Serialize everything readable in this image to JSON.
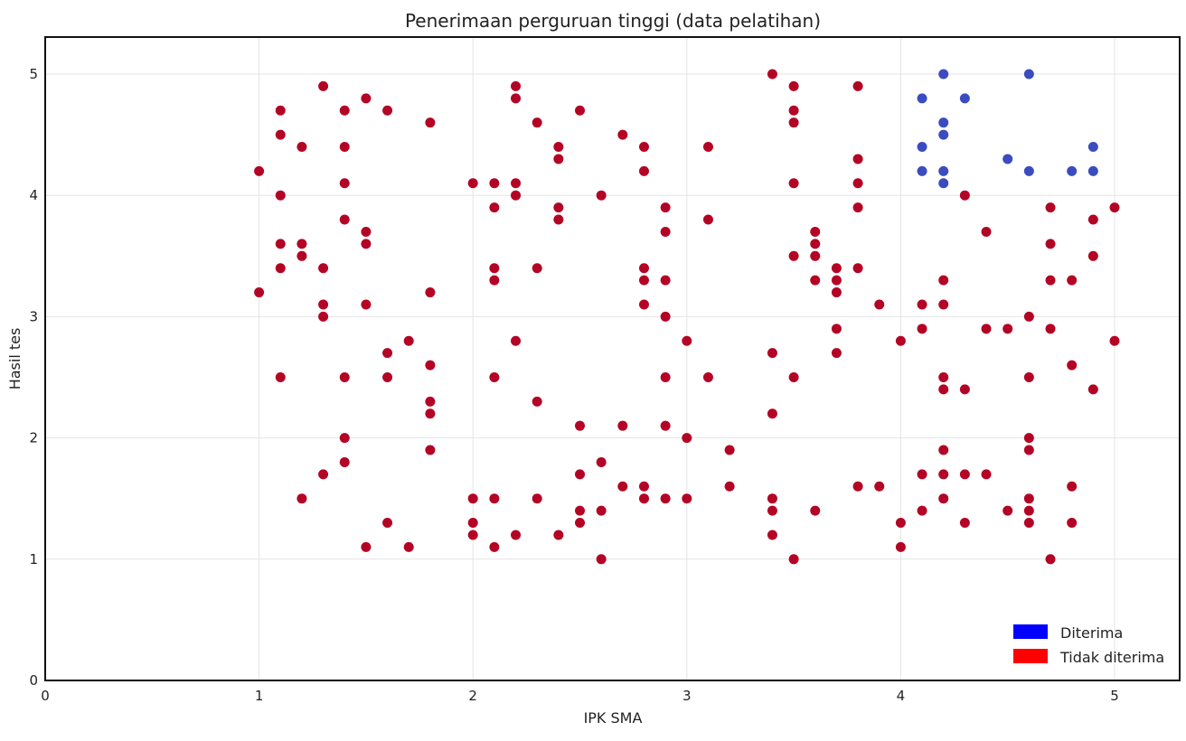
{
  "chart_data": {
    "type": "scatter",
    "title": "Penerimaan perguruan tinggi (data pelatihan)",
    "xlabel": "IPK SMA",
    "ylabel": "Hasil tes",
    "xlim": [
      0,
      5.3
    ],
    "ylim": [
      0,
      5.3
    ],
    "xticks": [
      "0",
      "1",
      "2",
      "3",
      "4",
      "5"
    ],
    "yticks": [
      "0",
      "1",
      "2",
      "3",
      "4",
      "5"
    ],
    "grid": true,
    "legend_position": "bottom-right",
    "legend": [
      {
        "label": "Diterima",
        "color": "#0000ff"
      },
      {
        "label": "Tidak diterima",
        "color": "#ff0000"
      }
    ],
    "series": [
      {
        "name": "Diterima",
        "color": "#3b4cc0",
        "points": [
          [
            4.1,
            4.8
          ],
          [
            4.1,
            4.4
          ],
          [
            4.1,
            4.2
          ],
          [
            4.2,
            5.0
          ],
          [
            4.2,
            4.6
          ],
          [
            4.2,
            4.5
          ],
          [
            4.2,
            4.2
          ],
          [
            4.2,
            4.1
          ],
          [
            4.3,
            4.8
          ],
          [
            4.5,
            4.3
          ],
          [
            4.6,
            5.0
          ],
          [
            4.6,
            4.2
          ],
          [
            4.8,
            4.2
          ],
          [
            4.9,
            4.4
          ],
          [
            4.9,
            4.2
          ]
        ]
      },
      {
        "name": "Tidak diterima",
        "color": "#b40426",
        "points": [
          [
            1.0,
            4.2
          ],
          [
            1.0,
            3.2
          ],
          [
            1.1,
            4.7
          ],
          [
            1.1,
            4.5
          ],
          [
            1.1,
            4.0
          ],
          [
            1.1,
            3.6
          ],
          [
            1.1,
            3.4
          ],
          [
            1.1,
            2.5
          ],
          [
            1.2,
            4.4
          ],
          [
            1.2,
            3.6
          ],
          [
            1.2,
            3.5
          ],
          [
            1.2,
            1.5
          ],
          [
            1.3,
            4.9
          ],
          [
            1.3,
            3.4
          ],
          [
            1.3,
            3.1
          ],
          [
            1.3,
            3.0
          ],
          [
            1.3,
            1.7
          ],
          [
            1.4,
            4.7
          ],
          [
            1.4,
            4.4
          ],
          [
            1.4,
            4.1
          ],
          [
            1.4,
            3.8
          ],
          [
            1.4,
            2.5
          ],
          [
            1.4,
            2.0
          ],
          [
            1.4,
            1.8
          ],
          [
            1.5,
            4.8
          ],
          [
            1.5,
            3.7
          ],
          [
            1.5,
            3.6
          ],
          [
            1.5,
            3.1
          ],
          [
            1.5,
            1.1
          ],
          [
            1.6,
            4.7
          ],
          [
            1.6,
            2.7
          ],
          [
            1.6,
            2.5
          ],
          [
            1.6,
            1.3
          ],
          [
            1.7,
            2.8
          ],
          [
            1.7,
            1.1
          ],
          [
            1.8,
            4.6
          ],
          [
            1.8,
            3.2
          ],
          [
            1.8,
            2.6
          ],
          [
            1.8,
            2.3
          ],
          [
            1.8,
            2.2
          ],
          [
            1.8,
            1.9
          ],
          [
            2.0,
            4.1
          ],
          [
            2.0,
            1.5
          ],
          [
            2.0,
            1.3
          ],
          [
            2.0,
            1.2
          ],
          [
            2.1,
            4.1
          ],
          [
            2.1,
            3.9
          ],
          [
            2.1,
            3.4
          ],
          [
            2.1,
            3.3
          ],
          [
            2.1,
            2.5
          ],
          [
            2.1,
            1.5
          ],
          [
            2.1,
            1.1
          ],
          [
            2.2,
            4.9
          ],
          [
            2.2,
            4.8
          ],
          [
            2.2,
            4.1
          ],
          [
            2.2,
            4.0
          ],
          [
            2.2,
            2.8
          ],
          [
            2.2,
            1.2
          ],
          [
            2.3,
            4.6
          ],
          [
            2.3,
            3.4
          ],
          [
            2.3,
            2.3
          ],
          [
            2.3,
            1.5
          ],
          [
            2.4,
            4.4
          ],
          [
            2.4,
            4.3
          ],
          [
            2.4,
            3.9
          ],
          [
            2.4,
            3.8
          ],
          [
            2.4,
            1.2
          ],
          [
            2.5,
            4.7
          ],
          [
            2.5,
            2.1
          ],
          [
            2.5,
            1.7
          ],
          [
            2.5,
            1.4
          ],
          [
            2.5,
            1.3
          ],
          [
            2.6,
            4.0
          ],
          [
            2.6,
            1.8
          ],
          [
            2.6,
            1.4
          ],
          [
            2.6,
            1.0
          ],
          [
            2.7,
            4.5
          ],
          [
            2.7,
            2.1
          ],
          [
            2.7,
            1.6
          ],
          [
            2.8,
            4.4
          ],
          [
            2.8,
            4.2
          ],
          [
            2.8,
            3.4
          ],
          [
            2.8,
            3.3
          ],
          [
            2.8,
            3.1
          ],
          [
            2.8,
            1.6
          ],
          [
            2.8,
            1.5
          ],
          [
            2.9,
            3.9
          ],
          [
            2.9,
            3.7
          ],
          [
            2.9,
            3.3
          ],
          [
            2.9,
            3.0
          ],
          [
            2.9,
            2.5
          ],
          [
            2.9,
            2.1
          ],
          [
            2.9,
            1.5
          ],
          [
            3.0,
            2.8
          ],
          [
            3.0,
            2.0
          ],
          [
            3.0,
            1.5
          ],
          [
            3.1,
            4.4
          ],
          [
            3.1,
            3.8
          ],
          [
            3.1,
            2.5
          ],
          [
            3.2,
            1.9
          ],
          [
            3.2,
            1.6
          ],
          [
            3.4,
            5.0
          ],
          [
            3.4,
            2.7
          ],
          [
            3.4,
            2.2
          ],
          [
            3.4,
            1.5
          ],
          [
            3.4,
            1.4
          ],
          [
            3.4,
            1.2
          ],
          [
            3.5,
            4.9
          ],
          [
            3.5,
            4.7
          ],
          [
            3.5,
            4.6
          ],
          [
            3.5,
            4.1
          ],
          [
            3.5,
            3.5
          ],
          [
            3.5,
            2.5
          ],
          [
            3.5,
            1.0
          ],
          [
            3.6,
            3.7
          ],
          [
            3.6,
            3.6
          ],
          [
            3.6,
            3.5
          ],
          [
            3.6,
            3.3
          ],
          [
            3.6,
            1.4
          ],
          [
            3.7,
            3.4
          ],
          [
            3.7,
            3.3
          ],
          [
            3.7,
            3.2
          ],
          [
            3.7,
            2.9
          ],
          [
            3.7,
            2.7
          ],
          [
            3.8,
            4.9
          ],
          [
            3.8,
            4.3
          ],
          [
            3.8,
            4.1
          ],
          [
            3.8,
            3.9
          ],
          [
            3.8,
            3.4
          ],
          [
            3.8,
            1.6
          ],
          [
            3.9,
            3.1
          ],
          [
            3.9,
            1.6
          ],
          [
            4.0,
            2.8
          ],
          [
            4.0,
            1.3
          ],
          [
            4.0,
            1.1
          ],
          [
            4.1,
            3.1
          ],
          [
            4.1,
            2.9
          ],
          [
            4.1,
            1.7
          ],
          [
            4.1,
            1.4
          ],
          [
            4.2,
            3.3
          ],
          [
            4.2,
            3.1
          ],
          [
            4.2,
            2.5
          ],
          [
            4.2,
            2.4
          ],
          [
            4.2,
            1.9
          ],
          [
            4.2,
            1.7
          ],
          [
            4.2,
            1.5
          ],
          [
            4.3,
            4.0
          ],
          [
            4.3,
            2.4
          ],
          [
            4.3,
            1.7
          ],
          [
            4.3,
            1.3
          ],
          [
            4.4,
            3.7
          ],
          [
            4.4,
            2.9
          ],
          [
            4.4,
            1.7
          ],
          [
            4.5,
            2.9
          ],
          [
            4.5,
            1.4
          ],
          [
            4.6,
            3.0
          ],
          [
            4.6,
            2.5
          ],
          [
            4.6,
            2.0
          ],
          [
            4.6,
            1.9
          ],
          [
            4.6,
            1.5
          ],
          [
            4.6,
            1.4
          ],
          [
            4.6,
            1.3
          ],
          [
            4.7,
            3.9
          ],
          [
            4.7,
            3.6
          ],
          [
            4.7,
            3.3
          ],
          [
            4.7,
            2.9
          ],
          [
            4.7,
            1.0
          ],
          [
            4.8,
            3.3
          ],
          [
            4.8,
            2.6
          ],
          [
            4.8,
            1.6
          ],
          [
            4.8,
            1.3
          ],
          [
            4.9,
            3.8
          ],
          [
            4.9,
            3.5
          ],
          [
            4.9,
            2.4
          ],
          [
            5.0,
            3.9
          ],
          [
            5.0,
            2.8
          ]
        ]
      }
    ]
  }
}
